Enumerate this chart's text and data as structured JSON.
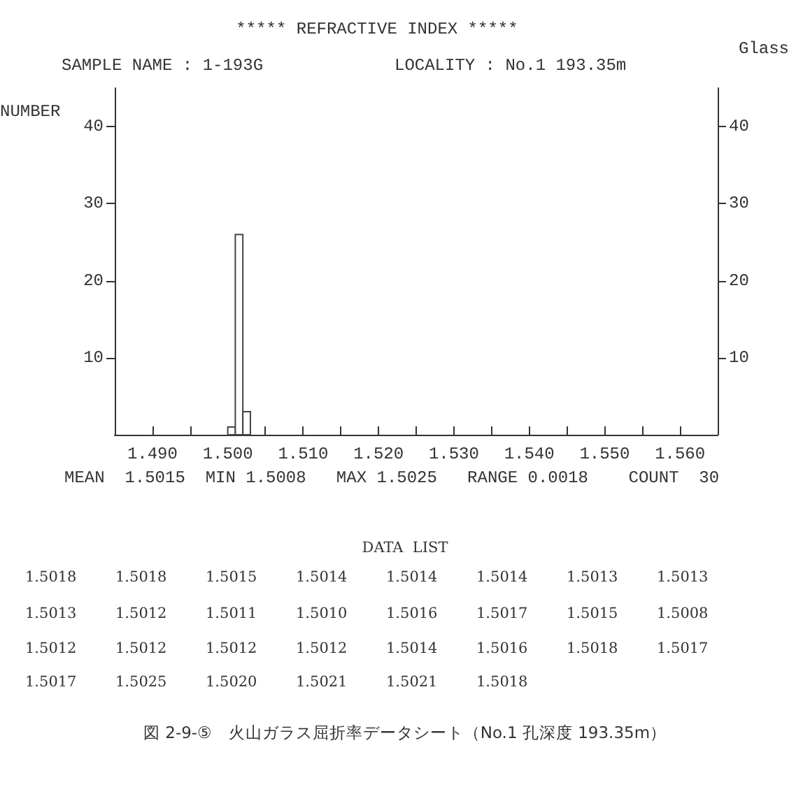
{
  "chart_data": {
    "type": "histogram",
    "title": "***** REFRACTIVE INDEX *****",
    "subtitle": "SAMPLE NAME : 1-193G",
    "ylabel": "NUMBER",
    "bins": [
      1.5,
      1.501,
      1.502,
      1.503
    ],
    "values": [
      1,
      26,
      3
    ],
    "color": "#ffffff",
    "xlim": [
      1.485,
      1.565
    ],
    "xticks": [
      {
        "value": 1.49,
        "label": "1.490"
      },
      {
        "value": 1.495,
        "label": null
      },
      {
        "value": 1.5,
        "label": "1.500"
      },
      {
        "value": 1.505,
        "label": null
      },
      {
        "value": 1.51,
        "label": "1.510"
      },
      {
        "value": 1.515,
        "label": null
      },
      {
        "value": 1.52,
        "label": "1.520"
      },
      {
        "value": 1.525,
        "label": null
      },
      {
        "value": 1.53,
        "label": "1.530"
      },
      {
        "value": 1.535,
        "label": null
      },
      {
        "value": 1.54,
        "label": "1.540"
      },
      {
        "value": 1.545,
        "label": null
      },
      {
        "value": 1.55,
        "label": "1.550"
      },
      {
        "value": 1.555,
        "label": null
      },
      {
        "value": 1.56,
        "label": "1.560"
      }
    ],
    "ylim": [
      0,
      45
    ],
    "yticks": [
      10,
      20,
      30,
      40
    ],
    "y2lim": [
      0,
      45
    ],
    "y2ticks": [
      10,
      20,
      30,
      40
    ],
    "grid": false,
    "annotations": [
      "LOCALITY : No.1 193.35m",
      "Glass",
      "MEAN  1.5015  MIN 1.5008   MAX 1.5025   RANGE 0.0018    COUNT  30",
      "DATA  LIST",
      "1.5018 1.5018 1.5015 1.5014 1.5014 1.5014 1.5013 1.5013",
      "1.5013 1.5012 1.5011 1.5010 1.5016 1.5017 1.5015 1.5008",
      "1.5012 1.5012 1.5012 1.5012 1.5014 1.5016 1.5018 1.5017",
      "1.5017 1.5025 1.5020 1.5021 1.5021 1.5018",
      "図 2-9-⑤　火山ガラス屈折率データシート（No.1 孔深度 193.35m）"
    ]
  }
}
